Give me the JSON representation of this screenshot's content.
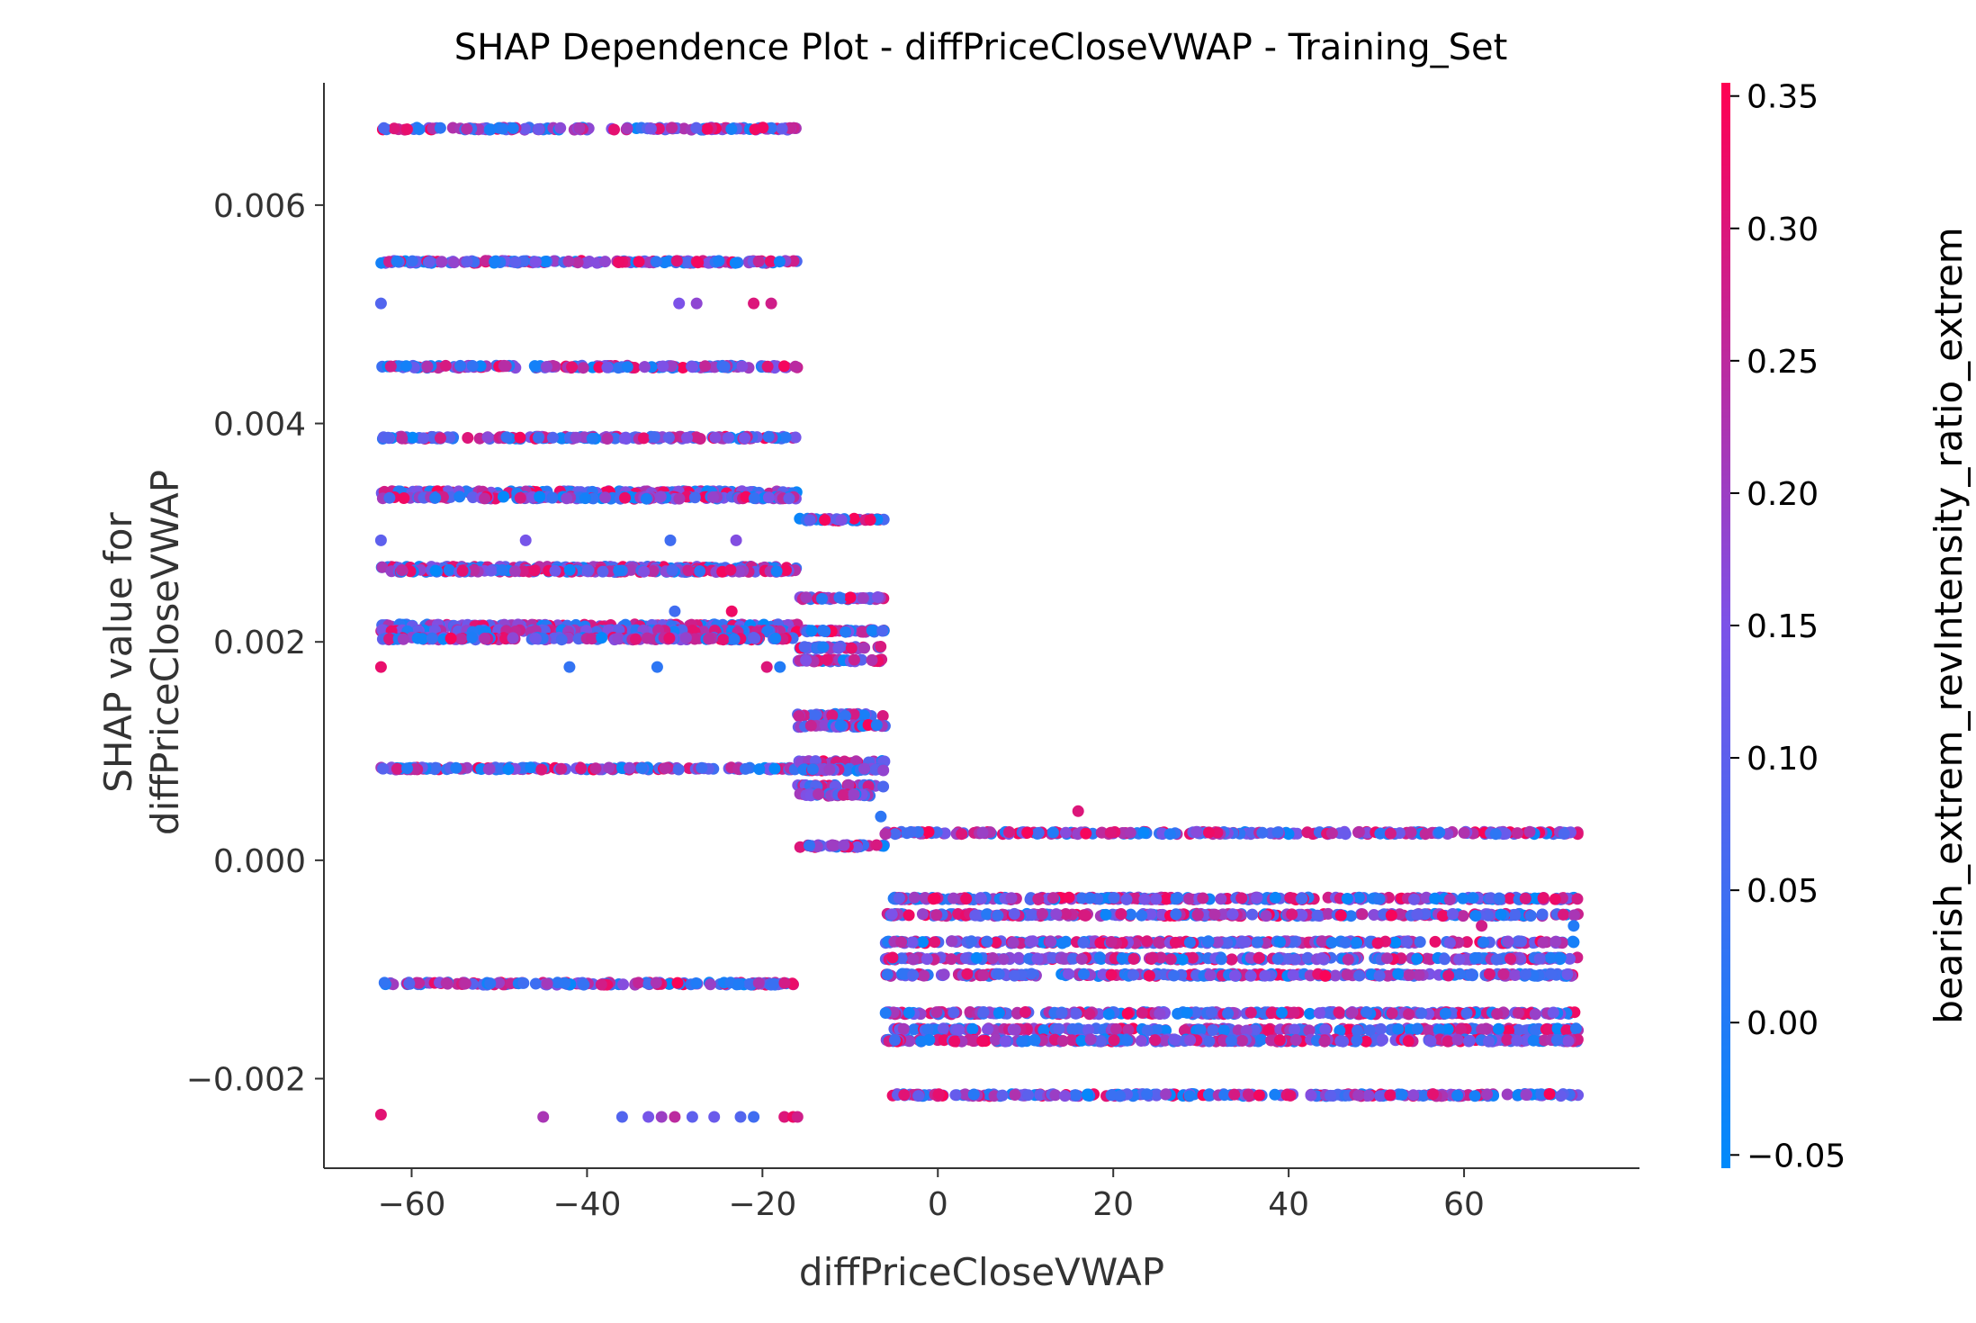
{
  "chart_data": {
    "type": "scatter",
    "title": "SHAP Dependence Plot - diffPriceCloseVWAP - Training_Set",
    "xlabel": "diffPriceCloseVWAP",
    "ylabel_lines": [
      "SHAP value for",
      "diffPriceCloseVWAP"
    ],
    "xlim": [
      -70,
      80
    ],
    "ylim": [
      -0.00282,
      0.00712
    ],
    "xticks": [
      -60,
      -40,
      -20,
      0,
      20,
      40,
      60
    ],
    "xtick_labels": [
      "−60",
      "−40",
      "−20",
      "0",
      "20",
      "40",
      "60"
    ],
    "yticks": [
      -0.002,
      0.0,
      0.002,
      0.004,
      0.006
    ],
    "ytick_labels": [
      "−0.002",
      "0.000",
      "0.002",
      "0.004",
      "0.006"
    ],
    "grid": false,
    "colorbar": {
      "label": "bearish_extrem_revIntensity_ratio_extrem",
      "range": [
        -0.055,
        0.355
      ],
      "ticks": [
        -0.05,
        0.0,
        0.05,
        0.1,
        0.15,
        0.2,
        0.25,
        0.3,
        0.35
      ],
      "tick_labels": [
        "−0.05",
        "0.00",
        "0.05",
        "0.10",
        "0.15",
        "0.20",
        "0.25",
        "0.30",
        "0.35"
      ],
      "color_low": "#008afb",
      "color_mid": "#7c52e8",
      "color_high": "#ff0052"
    },
    "series": [
      {
        "x_range": [
          -63.5,
          -16
        ],
        "y_levels": [
          0.0067,
          0.00548,
          0.00452,
          0.00387,
          0.00337,
          0.00332,
          0.00268,
          0.00265,
          0.00215,
          0.0021,
          0.00203,
          0.00084,
          -0.00113
        ]
      },
      {
        "x_range": [
          -16,
          -6
        ],
        "y_levels": [
          0.00312,
          0.0024,
          0.0021,
          0.00195,
          0.00183,
          0.00133,
          0.00123,
          0.0009,
          0.00083,
          0.00068,
          0.0006,
          0.00013
        ]
      },
      {
        "x_range": [
          -6,
          73
        ],
        "y_levels": [
          0.00025,
          -0.00035,
          -0.0005,
          -0.00075,
          -0.0009,
          -0.00105,
          -0.0014,
          -0.00155,
          -0.00165,
          -0.00215
        ]
      }
    ],
    "sparse_points": [
      {
        "x": -63.5,
        "y": 0.0051,
        "c": 0.08
      },
      {
        "x": -29.5,
        "y": 0.0051,
        "c": 0.15
      },
      {
        "x": -27.5,
        "y": 0.0051,
        "c": 0.18
      },
      {
        "x": -21,
        "y": 0.0051,
        "c": 0.3
      },
      {
        "x": -19,
        "y": 0.0051,
        "c": 0.28
      },
      {
        "x": -63.5,
        "y": 0.00293,
        "c": 0.1
      },
      {
        "x": -47,
        "y": 0.00293,
        "c": 0.14
      },
      {
        "x": -30.5,
        "y": 0.00293,
        "c": 0.05
      },
      {
        "x": -23,
        "y": 0.00293,
        "c": 0.16
      },
      {
        "x": -63.5,
        "y": 0.00177,
        "c": 0.32
      },
      {
        "x": -42,
        "y": 0.00177,
        "c": 0.03
      },
      {
        "x": -32,
        "y": 0.00177,
        "c": 0.02
      },
      {
        "x": -19.5,
        "y": 0.00177,
        "c": 0.3
      },
      {
        "x": -18,
        "y": 0.00177,
        "c": 0.0
      },
      {
        "x": -30,
        "y": 0.00228,
        "c": 0.05
      },
      {
        "x": -23.5,
        "y": 0.00228,
        "c": 0.33
      },
      {
        "x": -63.5,
        "y": -0.00233,
        "c": 0.31
      },
      {
        "x": -45,
        "y": -0.00235,
        "c": 0.22
      },
      {
        "x": -36,
        "y": -0.00235,
        "c": 0.08
      },
      {
        "x": -33,
        "y": -0.00235,
        "c": 0.14
      },
      {
        "x": -31.5,
        "y": -0.00235,
        "c": 0.2
      },
      {
        "x": -30,
        "y": -0.00235,
        "c": 0.25
      },
      {
        "x": -28,
        "y": -0.00235,
        "c": 0.1
      },
      {
        "x": -25.5,
        "y": -0.00235,
        "c": 0.12
      },
      {
        "x": -22.5,
        "y": -0.00235,
        "c": 0.08
      },
      {
        "x": -21,
        "y": -0.00235,
        "c": 0.05
      },
      {
        "x": -17.5,
        "y": -0.00235,
        "c": 0.3
      },
      {
        "x": -16.5,
        "y": -0.00235,
        "c": 0.33
      },
      {
        "x": -16,
        "y": -0.00235,
        "c": 0.28
      },
      {
        "x": -6.5,
        "y": 0.0004,
        "c": 0.02
      },
      {
        "x": 16,
        "y": 0.00045,
        "c": 0.3
      },
      {
        "x": 62,
        "y": -0.0006,
        "c": 0.28
      },
      {
        "x": 72.5,
        "y": -0.0006,
        "c": 0.0
      },
      {
        "x": 72.5,
        "y": -0.00075,
        "c": -0.02
      }
    ]
  }
}
